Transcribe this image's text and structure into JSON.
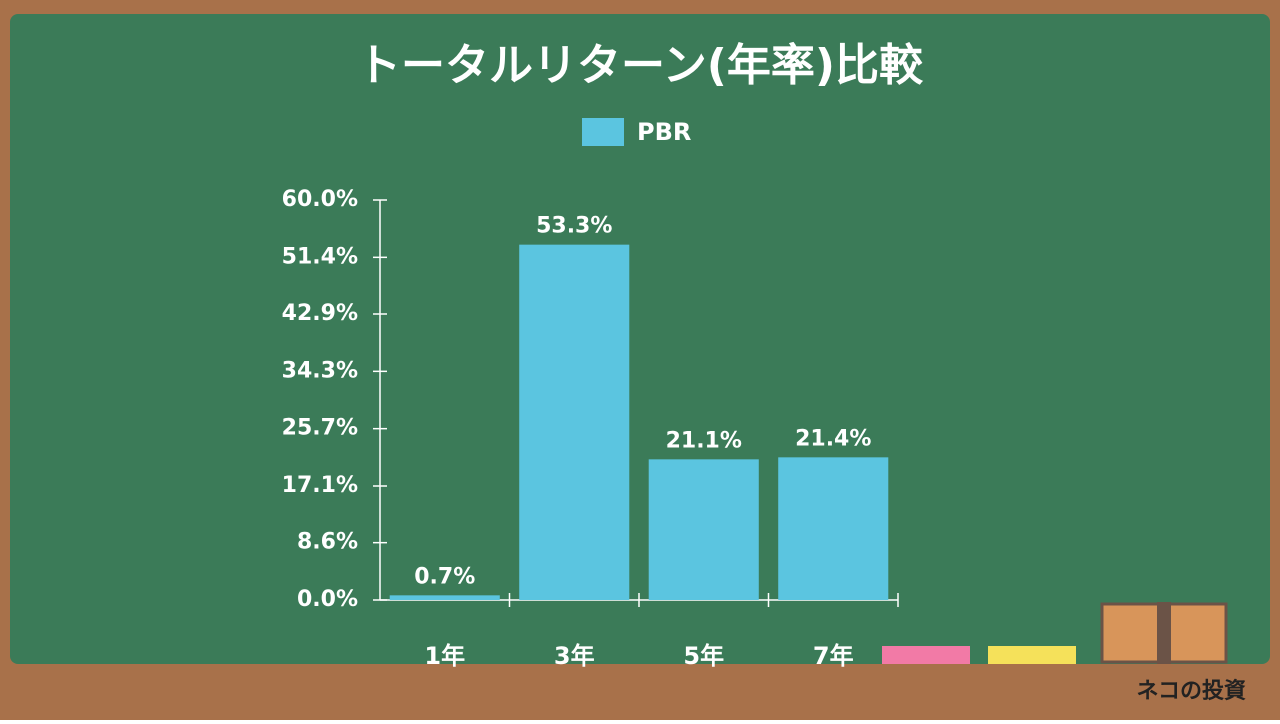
{
  "chart_data": {
    "type": "bar",
    "title": "トータルリターン(年率)比較",
    "categories": [
      "1年",
      "3年",
      "5年",
      "7年"
    ],
    "series": [
      {
        "name": "PBR",
        "color": "#5bc5e0",
        "values": [
          0.7,
          53.3,
          21.1,
          21.4
        ],
        "value_labels": [
          "0.7%",
          "53.3%",
          "21.1%",
          "21.4%"
        ]
      }
    ],
    "ylim": [
      0,
      60
    ],
    "yticks": [
      {
        "value": 0,
        "label": "0.0%"
      },
      {
        "value": 8.6,
        "label": "8.6%"
      },
      {
        "value": 17.1,
        "label": "17.1%"
      },
      {
        "value": 25.7,
        "label": "25.7%"
      },
      {
        "value": 34.3,
        "label": "34.3%"
      },
      {
        "value": 42.9,
        "label": "42.9%"
      },
      {
        "value": 51.4,
        "label": "51.4%"
      },
      {
        "value": 60,
        "label": "60.0%"
      }
    ],
    "grid": false
  },
  "brand": "ネコの投資"
}
